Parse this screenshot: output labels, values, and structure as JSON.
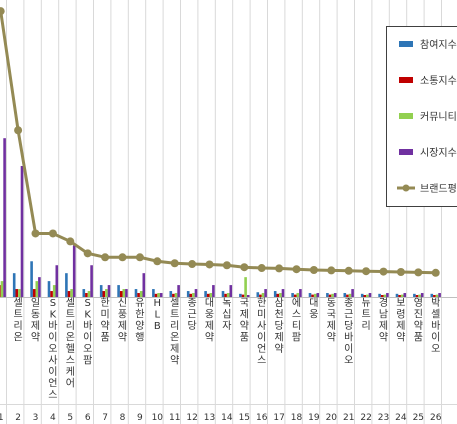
{
  "chart_data": {
    "type": "bar",
    "ylim": [
      0,
      100
    ],
    "grid": true,
    "legend_placement": "top-right",
    "colors": {
      "참여지수": "#2e75b6",
      "소통지수": "#c00000",
      "커뮤니티지수": "#92d050",
      "시장지수": "#7030a0",
      "브랜드평판지수": "#948a54"
    },
    "categories": [
      {
        "rank": "1",
        "name": ""
      },
      {
        "rank": "2",
        "name": "셀트리온"
      },
      {
        "rank": "3",
        "name": "일동제약"
      },
      {
        "rank": "4",
        "name": "SK바이오사이언스"
      },
      {
        "rank": "5",
        "name": "셀트리온헬스케어"
      },
      {
        "rank": "6",
        "name": "SK바이오팜"
      },
      {
        "rank": "7",
        "name": "한미약품"
      },
      {
        "rank": "8",
        "name": "신풍제약"
      },
      {
        "rank": "9",
        "name": "유한양행"
      },
      {
        "rank": "10",
        "name": "HLB"
      },
      {
        "rank": "11",
        "name": "셀트리온제약"
      },
      {
        "rank": "12",
        "name": "종근당"
      },
      {
        "rank": "13",
        "name": "대웅제약"
      },
      {
        "rank": "14",
        "name": "녹십자"
      },
      {
        "rank": "15",
        "name": "국제약품"
      },
      {
        "rank": "16",
        "name": "한미사이언스"
      },
      {
        "rank": "17",
        "name": "삼천당제약"
      },
      {
        "rank": "18",
        "name": "에스티팜"
      },
      {
        "rank": "19",
        "name": "대웅"
      },
      {
        "rank": "20",
        "name": "동국제약"
      },
      {
        "rank": "21",
        "name": "종근당바이오"
      },
      {
        "rank": "22",
        "name": "뉴트리"
      },
      {
        "rank": "23",
        "name": "경남제약"
      },
      {
        "rank": "24",
        "name": "보령제약"
      },
      {
        "rank": "25",
        "name": "영진약품"
      },
      {
        "rank": "26",
        "name": "박셀바이오"
      }
    ],
    "series": [
      {
        "name": "참여지수",
        "values": [
          10,
          6,
          9,
          4,
          6,
          2,
          3,
          3,
          2,
          2,
          1.5,
          1.5,
          1.5,
          1.5,
          0.8,
          1.2,
          1.5,
          1,
          1,
          1,
          1,
          0.8,
          0.8,
          0.8,
          0.8,
          0.8
        ]
      },
      {
        "name": "소통지수",
        "values": [
          3,
          2,
          2,
          1.5,
          1.5,
          1,
          1.5,
          1.5,
          1,
          0.8,
          0.8,
          0.8,
          0.8,
          0.8,
          0.6,
          0.6,
          0.8,
          0.6,
          0.6,
          0.6,
          0.6,
          0.5,
          0.5,
          0.5,
          0.5,
          0.5
        ]
      },
      {
        "name": "커뮤니티지수",
        "values": [
          4,
          2,
          4,
          3,
          2,
          1.5,
          2,
          2,
          1.5,
          1,
          1,
          1,
          1,
          1,
          5,
          1,
          1,
          1,
          0.8,
          0.8,
          0.8,
          0.6,
          0.6,
          0.6,
          0.6,
          0.6
        ]
      },
      {
        "name": "시장지수",
        "values": [
          40,
          33,
          5,
          8,
          13,
          8,
          3,
          2,
          6,
          1,
          3,
          2,
          3,
          3,
          0.5,
          2,
          2,
          2,
          1,
          1,
          2,
          1,
          1,
          1,
          1,
          1
        ]
      },
      {
        "name": "브랜드평판지수",
        "values": [
          72,
          42,
          16,
          16,
          14,
          11,
          10,
          10,
          10,
          9,
          8.5,
          8.3,
          8.2,
          8,
          7.5,
          7.3,
          7.2,
          7,
          6.8,
          6.7,
          6.6,
          6.5,
          6.4,
          6.3,
          6.2,
          6.1
        ]
      }
    ]
  }
}
